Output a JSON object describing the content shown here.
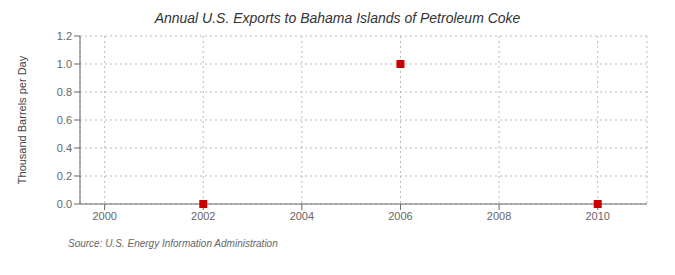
{
  "chart_data": {
    "type": "scatter",
    "title": "Annual U.S. Exports to Bahama Islands of Petroleum Coke",
    "ylabel": "Thousand Barrels per Day",
    "annotations": [
      "Source: U.S. Energy Information Administration"
    ],
    "x": [
      2002,
      2006,
      2010
    ],
    "values": [
      0.0,
      1.0,
      0.0
    ],
    "color": "#cc0000",
    "marker": "square",
    "xlim": [
      1999.5,
      2011
    ],
    "ylim": [
      0.0,
      1.2
    ],
    "xticks": [
      2000,
      2002,
      2004,
      2006,
      2008,
      2010
    ],
    "yticks": [
      {
        "value": 0,
        "label": "0.0"
      },
      0.2,
      0.4,
      0.6,
      0.8,
      {
        "value": 1,
        "label": "1.0"
      },
      1.2
    ],
    "grid": true
  }
}
